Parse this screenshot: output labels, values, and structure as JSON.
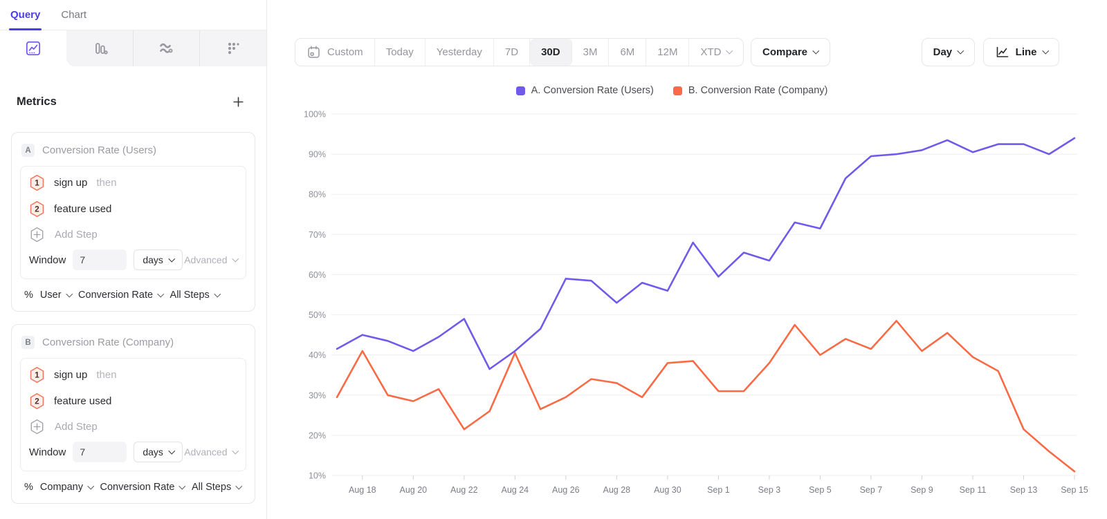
{
  "sidebar": {
    "tabs": [
      {
        "label": "Query"
      },
      {
        "label": "Chart"
      }
    ],
    "active_tab": "Query",
    "chart_type_icons": [
      "line-chart",
      "bar-chart",
      "flow-chart",
      "scatter-grid"
    ],
    "metrics": {
      "heading": "Metrics",
      "cards": [
        {
          "badge": "A",
          "title": "Conversion Rate (Users)",
          "steps": [
            {
              "num": "1",
              "event": "sign up",
              "connector": "then"
            },
            {
              "num": "2",
              "event": "feature used",
              "connector": ""
            }
          ],
          "add_step": "Add Step",
          "window": {
            "label": "Window",
            "value": "7",
            "unit": "days",
            "advanced": "Advanced"
          },
          "measure": {
            "symbol": "%",
            "entity": "User",
            "metric": "Conversion Rate",
            "scope": "All Steps"
          }
        },
        {
          "badge": "B",
          "title": "Conversion Rate (Company)",
          "steps": [
            {
              "num": "1",
              "event": "sign up",
              "connector": "then"
            },
            {
              "num": "2",
              "event": "feature used",
              "connector": ""
            }
          ],
          "add_step": "Add Step",
          "window": {
            "label": "Window",
            "value": "7",
            "unit": "days",
            "advanced": "Advanced"
          },
          "measure": {
            "symbol": "%",
            "entity": "Company",
            "metric": "Conversion Rate",
            "scope": "All Steps"
          }
        }
      ]
    }
  },
  "toolbar": {
    "ranges": [
      "Custom",
      "Today",
      "Yesterday",
      "7D",
      "30D",
      "3M",
      "6M",
      "12M",
      "XTD"
    ],
    "active_range": "30D",
    "compare": "Compare",
    "granularity": "Day",
    "chart_style": "Line"
  },
  "legend": {
    "items": [
      {
        "label": "A. Conversion Rate (Users)",
        "color": "#7159ec"
      },
      {
        "label": "B. Conversion Rate (Company)",
        "color": "#f96a45"
      }
    ]
  },
  "chart_data": {
    "type": "line",
    "x": [
      "Aug 17",
      "Aug 18",
      "Aug 19",
      "Aug 20",
      "Aug 21",
      "Aug 22",
      "Aug 23",
      "Aug 24",
      "Aug 25",
      "Aug 26",
      "Aug 27",
      "Aug 28",
      "Aug 29",
      "Aug 30",
      "Aug 31",
      "Sep 1",
      "Sep 2",
      "Sep 3",
      "Sep 4",
      "Sep 5",
      "Sep 6",
      "Sep 7",
      "Sep 8",
      "Sep 9",
      "Sep 10",
      "Sep 11",
      "Sep 12",
      "Sep 13",
      "Sep 14",
      "Sep 15"
    ],
    "x_tick_every": 2,
    "y_axis": {
      "min": 10,
      "max": 100,
      "step": 10,
      "format": "percent"
    },
    "grid": "horizontal",
    "legend_position": "top",
    "series": [
      {
        "name": "A. Conversion Rate (Users)",
        "color": "#7159ec",
        "values": [
          41.5,
          45,
          43.5,
          41,
          44.5,
          49,
          36.5,
          41,
          46.5,
          59,
          58.5,
          53,
          58,
          56,
          68,
          59.5,
          65.5,
          63.5,
          73,
          71.5,
          84,
          89.5,
          90,
          91,
          93.5,
          90.5,
          92.5,
          92.5,
          90,
          94
        ]
      },
      {
        "name": "B. Conversion Rate (Company)",
        "color": "#f96a45",
        "values": [
          29.5,
          41,
          30,
          28.5,
          31.5,
          21.5,
          26,
          40.5,
          26.5,
          29.5,
          34,
          33,
          29.5,
          38,
          38.5,
          31,
          31,
          38,
          47.5,
          40,
          44,
          41.5,
          48.5,
          41,
          45.5,
          39.5,
          36,
          21.5,
          16,
          11
        ]
      }
    ]
  }
}
